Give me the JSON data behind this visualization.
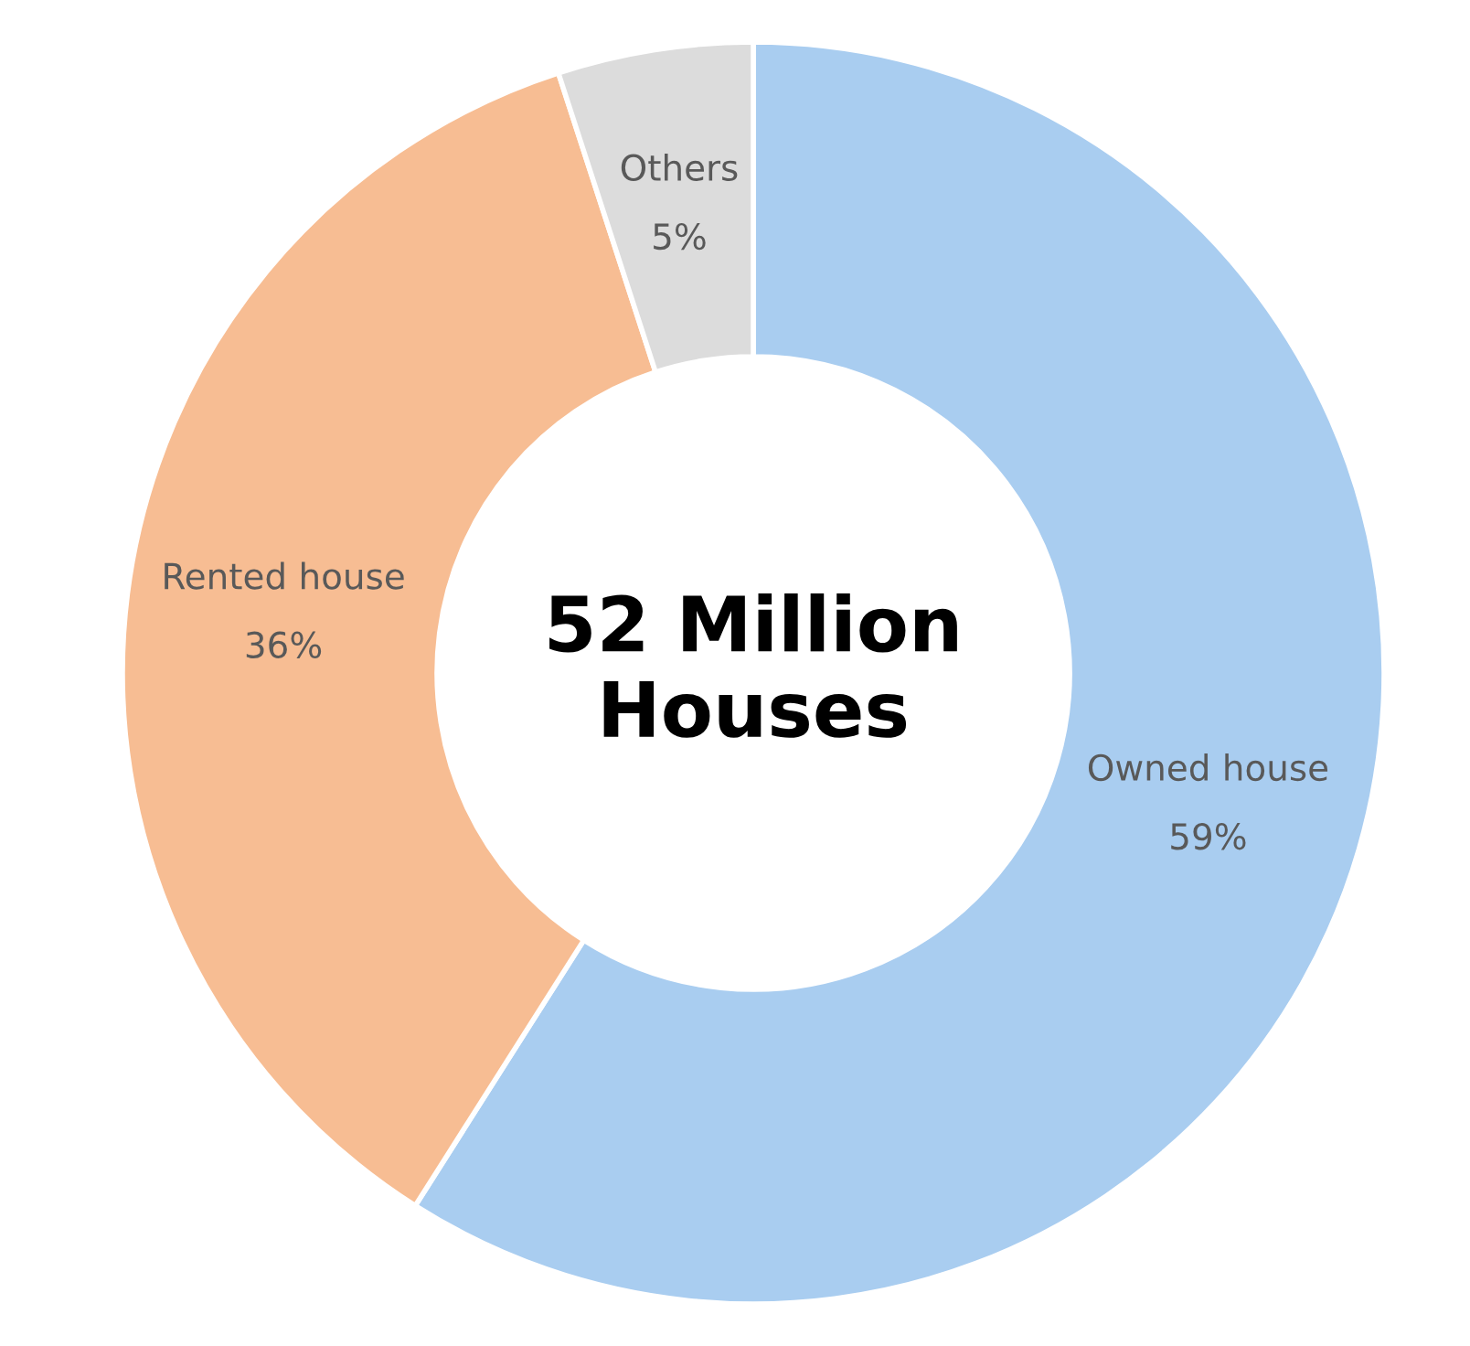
{
  "chart_data": {
    "type": "donut",
    "categories": [
      "Owned house",
      "Rented house",
      "Others"
    ],
    "values": [
      59,
      36,
      5
    ],
    "colors": [
      "#a9cdf0",
      "#f7bd93",
      "#dcdcdc"
    ],
    "value_labels": [
      "59%",
      "36%",
      "5%"
    ],
    "annotations": [
      "52 Million\nHouses"
    ]
  }
}
